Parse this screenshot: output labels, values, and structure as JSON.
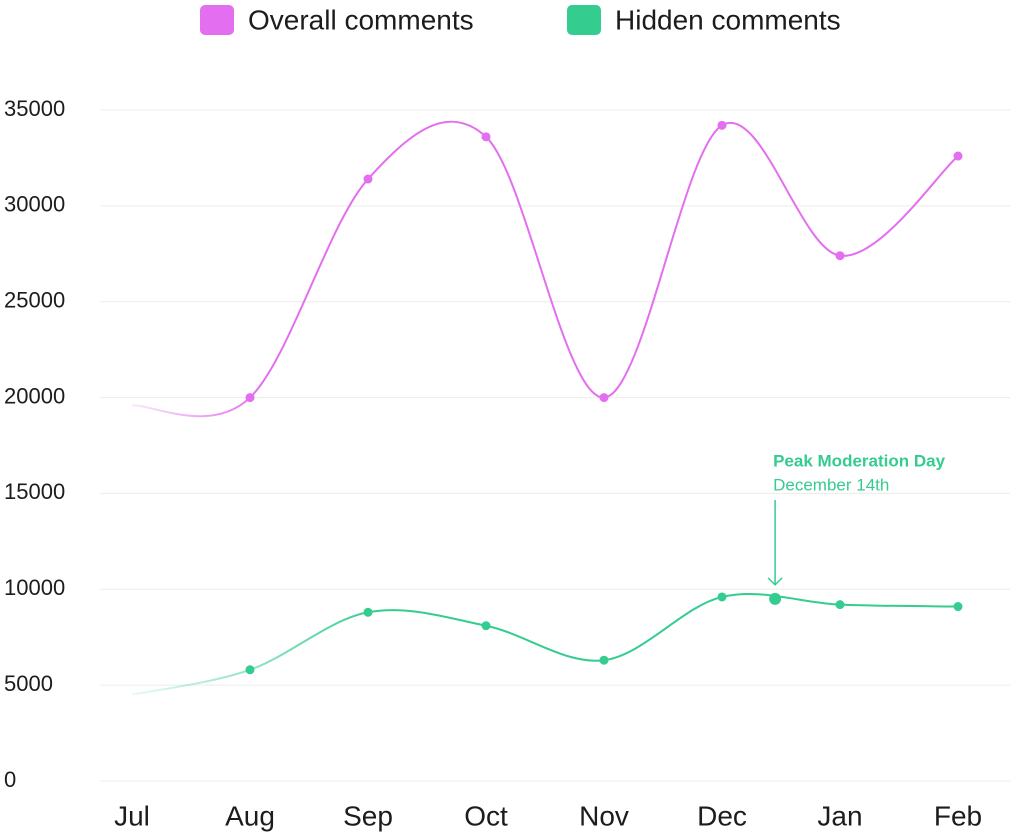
{
  "chart_data": {
    "type": "line",
    "categories": [
      "Jul",
      "Aug",
      "Sep",
      "Oct",
      "Nov",
      "Dec",
      "Jan",
      "Feb"
    ],
    "series": [
      {
        "name": "Overall comments",
        "color": "#e46ef0",
        "values": [
          19600,
          20000,
          31400,
          33600,
          20000,
          34200,
          27400,
          32600
        ]
      },
      {
        "name": "Hidden comments",
        "color": "#34cc8f",
        "values": [
          4500,
          5800,
          8800,
          8100,
          6300,
          9600,
          9200,
          9100
        ]
      }
    ],
    "ylim": [
      0,
      35000
    ],
    "yticks": [
      0,
      5000,
      10000,
      15000,
      20000,
      25000,
      30000,
      35000
    ],
    "grid": true,
    "annotation": {
      "title": "Peak Moderation Day",
      "text": "December 14th",
      "value": 9500
    }
  }
}
